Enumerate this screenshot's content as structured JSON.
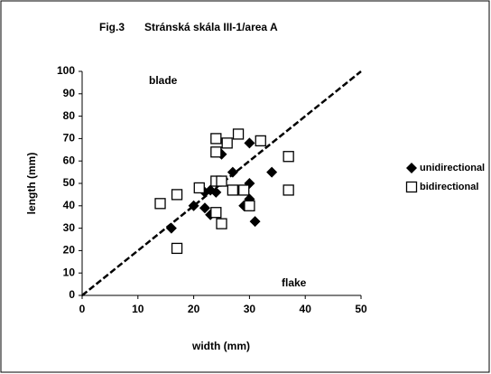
{
  "chart_data": {
    "type": "scatter",
    "title": "Stránská skála III-1/area A",
    "subtitle": "Fig.3",
    "x_label": "width (mm)",
    "y_label": "length (mm)",
    "annotations": [
      "blade",
      "flake"
    ],
    "reference_line": {
      "x": [
        0,
        50
      ],
      "y": [
        0,
        100
      ],
      "color": "#000000"
    },
    "series": [
      {
        "name": "unidirectional",
        "marker": "diamond",
        "color": "#000000",
        "x": [
          16,
          20,
          22,
          22,
          23,
          23,
          24,
          25,
          27,
          29,
          30,
          30,
          30,
          31,
          34,
          24
        ],
        "y": [
          30,
          40,
          39,
          46,
          47,
          36,
          37,
          63,
          55,
          40,
          43,
          50,
          68,
          33,
          55,
          46
        ]
      },
      {
        "name": "bidirectional",
        "marker": "square",
        "color": "#000000",
        "x": [
          14,
          17,
          17,
          21,
          24,
          24,
          24,
          25,
          26,
          28,
          24,
          25,
          27,
          29,
          30,
          32,
          37,
          37
        ],
        "y": [
          41,
          45,
          21,
          48,
          70,
          64,
          51,
          51,
          68,
          72,
          37,
          32,
          47,
          47,
          40,
          69,
          62,
          47
        ]
      }
    ],
    "xlim": [
      0,
      50
    ],
    "xticks": [
      0,
      10,
      20,
      30,
      40,
      50
    ],
    "ylim": [
      0,
      100
    ],
    "yticks": [
      0,
      10,
      20,
      30,
      40,
      50,
      60,
      70,
      80,
      90,
      100
    ],
    "legend": "right"
  }
}
